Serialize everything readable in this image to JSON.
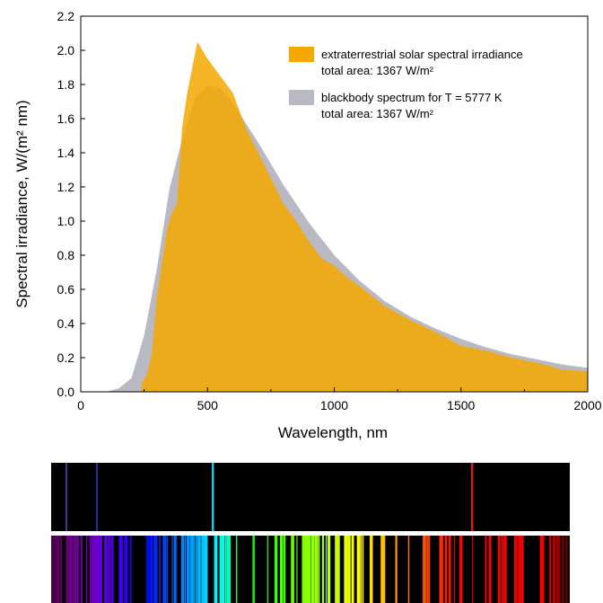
{
  "chart_data": {
    "type": "area",
    "title": "",
    "xlabel": "Wavelength, nm",
    "ylabel": "Spectral irradiance, W/(m² nm)",
    "xlim": [
      0,
      2000
    ],
    "ylim": [
      0,
      2.2
    ],
    "xticks": [
      "0",
      "500",
      "1000",
      "1500",
      "2000"
    ],
    "yticks": [
      "0.0",
      "0.2",
      "0.4",
      "0.6",
      "0.8",
      "1.0",
      "1.2",
      "1.4",
      "1.6",
      "1.8",
      "2.0",
      "2.2"
    ],
    "grid": false,
    "legend_position": "top-right",
    "series": [
      {
        "name": "extraterrestrial solar spectral irradiance",
        "annotation": "total area: 1367 W/m²",
        "color": "#f5a800",
        "x": [
          240,
          260,
          280,
          300,
          320,
          340,
          360,
          380,
          400,
          420,
          440,
          460,
          480,
          500,
          550,
          600,
          650,
          700,
          750,
          800,
          850,
          900,
          950,
          1000,
          1050,
          1100,
          1200,
          1300,
          1400,
          1500,
          1600,
          1700,
          1800,
          1900,
          2000
        ],
        "y": [
          0.05,
          0.1,
          0.22,
          0.55,
          0.75,
          0.95,
          1.05,
          1.1,
          1.55,
          1.75,
          1.9,
          2.05,
          2.0,
          1.95,
          1.85,
          1.75,
          1.55,
          1.4,
          1.25,
          1.1,
          1.0,
          0.88,
          0.78,
          0.74,
          0.67,
          0.62,
          0.5,
          0.42,
          0.35,
          0.27,
          0.24,
          0.2,
          0.17,
          0.13,
          0.12
        ]
      },
      {
        "name": "blackbody spectrum for T = 5777 K",
        "annotation": "total area: 1367 W/m²",
        "color": "#b9b9c3",
        "x": [
          100,
          150,
          200,
          250,
          300,
          350,
          400,
          450,
          500,
          550,
          600,
          700,
          800,
          900,
          1000,
          1100,
          1200,
          1300,
          1400,
          1500,
          1600,
          1700,
          1800,
          1900,
          2000
        ],
        "y": [
          0.0,
          0.02,
          0.08,
          0.33,
          0.72,
          1.19,
          1.48,
          1.72,
          1.79,
          1.78,
          1.69,
          1.46,
          1.21,
          0.99,
          0.8,
          0.65,
          0.53,
          0.44,
          0.37,
          0.31,
          0.26,
          0.22,
          0.19,
          0.16,
          0.14
        ]
      }
    ]
  },
  "spectrum_strips": {
    "emission_lines_color": [
      "#6a3fd0",
      "#3b3bd8",
      "#2ec4e0",
      "#e01818"
    ],
    "absorption_background": "#000000"
  }
}
